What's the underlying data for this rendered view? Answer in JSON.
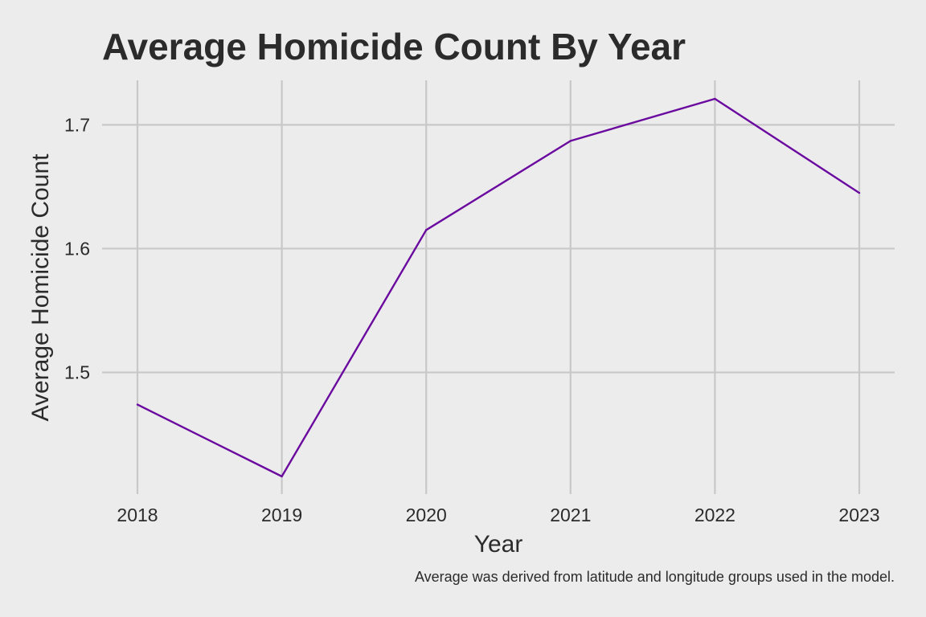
{
  "chart_data": {
    "type": "line",
    "title": "Average Homicide Count By Year",
    "xlabel": "Year",
    "ylabel": "Average Homicide Count",
    "caption": "Average was derived from latitude and longitude groups used in the model.",
    "x": [
      2018,
      2019,
      2020,
      2021,
      2022,
      2023
    ],
    "x_tick_labels": [
      "2018",
      "2019",
      "2020",
      "2021",
      "2022",
      "2023"
    ],
    "y_ticks": [
      1.5,
      1.6,
      1.7
    ],
    "y_tick_labels": [
      "1.5",
      "1.6",
      "1.7"
    ],
    "xlim": [
      2018,
      2023
    ],
    "ylim": [
      1.416,
      1.721
    ],
    "grid": true,
    "legend": "none",
    "series": [
      {
        "values": [
          1.474,
          1.416,
          1.615,
          1.687,
          1.721,
          1.645
        ],
        "color": "#6a0a9e"
      }
    ],
    "colors": {
      "background": "#ececed",
      "grid": "#c8c8c8",
      "text": "#2b2b2b"
    }
  }
}
